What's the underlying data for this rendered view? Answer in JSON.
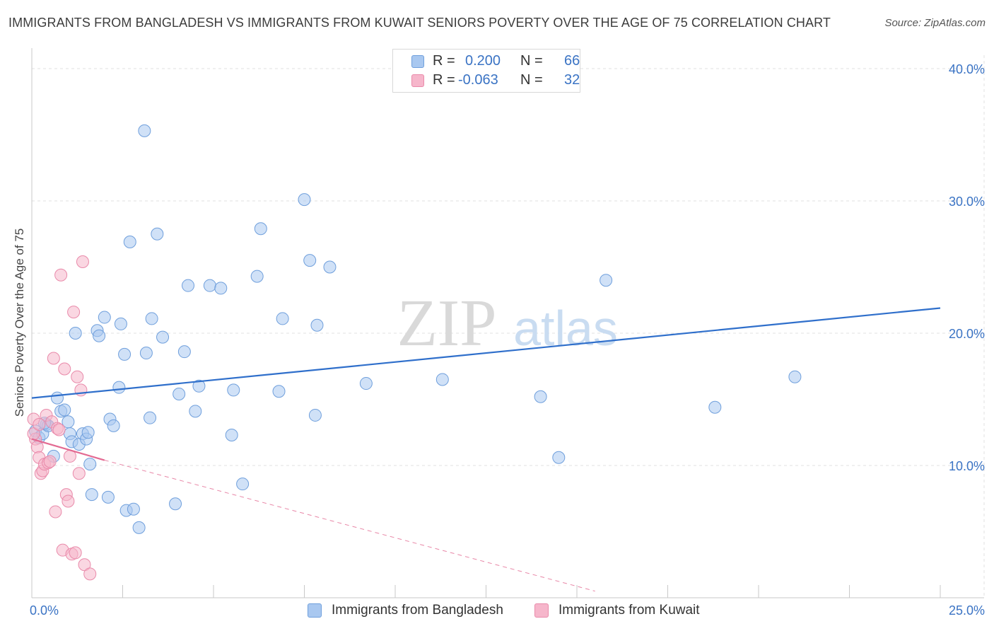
{
  "header": {
    "title": "IMMIGRANTS FROM BANGLADESH VS IMMIGRANTS FROM KUWAIT SENIORS POVERTY OVER THE AGE OF 75 CORRELATION CHART",
    "source": "Source: ZipAtlas.com"
  },
  "watermark": {
    "zip": "ZIP",
    "atlas": "atlas"
  },
  "legend": {
    "r_label": "R =",
    "n_label": "N =",
    "rows": [
      {
        "r": "0.200",
        "n": "66"
      },
      {
        "r": "-0.063",
        "n": "32"
      }
    ]
  },
  "colors": {
    "blue_fill": "#a9c8f0",
    "blue_edge": "#6f9fdc",
    "blue_line": "#2f6fcb",
    "pink_fill": "#f6b6cb",
    "pink_edge": "#e98aaa",
    "pink_line": "#e36a92",
    "axis_label": "#3a73c4",
    "grid": "#e0e0e0"
  },
  "chart_data": {
    "type": "scatter",
    "title": "IMMIGRANTS FROM BANGLADESH VS IMMIGRANTS FROM KUWAIT SENIORS POVERTY OVER THE AGE OF 75 CORRELATION CHART",
    "xlabel": "",
    "ylabel": "Seniors Poverty Over the Age of 75",
    "xlim": [
      0,
      25
    ],
    "ylim": [
      0,
      40
    ],
    "x_tick_labels": [
      "0.0%",
      "25.0%"
    ],
    "y_ticks": [
      10,
      20,
      30,
      40
    ],
    "y_tick_labels": [
      "10.0%",
      "20.0%",
      "30.0%",
      "40.0%"
    ],
    "grid": true,
    "legend_position": "top-center",
    "series": [
      {
        "name": "Immigrants from Bangladesh",
        "color": "blue",
        "r": 0.2,
        "n": 66,
        "trend": {
          "x": [
            0,
            25
          ],
          "y": [
            15.1,
            21.9
          ]
        },
        "points": [
          [
            0.1,
            12.6
          ],
          [
            0.2,
            12.1
          ],
          [
            0.3,
            12.4
          ],
          [
            0.4,
            13.1
          ],
          [
            0.45,
            13.0
          ],
          [
            0.6,
            10.7
          ],
          [
            0.7,
            15.1
          ],
          [
            0.8,
            14.1
          ],
          [
            0.9,
            14.2
          ],
          [
            1.0,
            13.3
          ],
          [
            1.05,
            12.4
          ],
          [
            1.1,
            11.8
          ],
          [
            1.2,
            20.0
          ],
          [
            1.3,
            11.6
          ],
          [
            1.4,
            12.4
          ],
          [
            1.5,
            12.0
          ],
          [
            1.55,
            12.5
          ],
          [
            1.6,
            10.1
          ],
          [
            1.65,
            7.8
          ],
          [
            1.8,
            20.2
          ],
          [
            1.85,
            19.8
          ],
          [
            2.0,
            21.2
          ],
          [
            2.1,
            7.6
          ],
          [
            2.15,
            13.5
          ],
          [
            2.25,
            13.0
          ],
          [
            2.4,
            15.9
          ],
          [
            2.45,
            20.7
          ],
          [
            2.55,
            18.4
          ],
          [
            2.6,
            6.6
          ],
          [
            2.7,
            26.9
          ],
          [
            2.8,
            6.7
          ],
          [
            2.95,
            5.3
          ],
          [
            3.1,
            35.3
          ],
          [
            3.15,
            18.5
          ],
          [
            3.25,
            13.6
          ],
          [
            3.3,
            21.1
          ],
          [
            3.45,
            27.5
          ],
          [
            3.6,
            19.7
          ],
          [
            3.95,
            7.1
          ],
          [
            4.05,
            15.4
          ],
          [
            4.2,
            18.6
          ],
          [
            4.3,
            23.6
          ],
          [
            4.5,
            14.1
          ],
          [
            4.6,
            16.0
          ],
          [
            4.9,
            23.6
          ],
          [
            5.2,
            23.4
          ],
          [
            5.5,
            12.3
          ],
          [
            5.55,
            15.7
          ],
          [
            5.8,
            8.6
          ],
          [
            6.2,
            24.3
          ],
          [
            6.3,
            27.9
          ],
          [
            6.8,
            15.6
          ],
          [
            6.9,
            21.1
          ],
          [
            7.5,
            30.1
          ],
          [
            7.65,
            25.5
          ],
          [
            7.8,
            13.8
          ],
          [
            7.85,
            20.6
          ],
          [
            8.2,
            25.0
          ],
          [
            9.2,
            16.2
          ],
          [
            11.3,
            16.5
          ],
          [
            14.0,
            15.2
          ],
          [
            14.5,
            10.6
          ],
          [
            15.8,
            24.0
          ],
          [
            18.8,
            14.4
          ],
          [
            21.0,
            16.7
          ],
          [
            0.35,
            13.2
          ]
        ]
      },
      {
        "name": "Immigrants from Kuwait",
        "color": "pink",
        "r": -0.063,
        "n": 32,
        "trend": {
          "x": [
            0,
            2.0
          ],
          "y": [
            12.0,
            10.4
          ]
        },
        "trend_extension": {
          "x": [
            2.0,
            15.5
          ],
          "y": [
            10.4,
            0.5
          ]
        },
        "points": [
          [
            0.05,
            13.5
          ],
          [
            0.1,
            12.0
          ],
          [
            0.15,
            11.4
          ],
          [
            0.2,
            10.6
          ],
          [
            0.25,
            9.4
          ],
          [
            0.3,
            9.6
          ],
          [
            0.35,
            10.1
          ],
          [
            0.4,
            13.8
          ],
          [
            0.45,
            10.2
          ],
          [
            0.5,
            10.3
          ],
          [
            0.55,
            13.3
          ],
          [
            0.6,
            18.1
          ],
          [
            0.65,
            6.5
          ],
          [
            0.7,
            12.8
          ],
          [
            0.75,
            12.7
          ],
          [
            0.8,
            24.4
          ],
          [
            0.85,
            3.6
          ],
          [
            0.9,
            17.3
          ],
          [
            0.95,
            7.8
          ],
          [
            1.0,
            7.3
          ],
          [
            1.05,
            10.7
          ],
          [
            1.1,
            3.3
          ],
          [
            1.15,
            21.6
          ],
          [
            1.2,
            3.4
          ],
          [
            1.25,
            16.7
          ],
          [
            1.3,
            9.4
          ],
          [
            1.35,
            15.7
          ],
          [
            1.4,
            25.4
          ],
          [
            1.45,
            2.5
          ],
          [
            1.6,
            1.8
          ],
          [
            0.05,
            12.4
          ],
          [
            0.2,
            13.1
          ]
        ]
      }
    ]
  }
}
